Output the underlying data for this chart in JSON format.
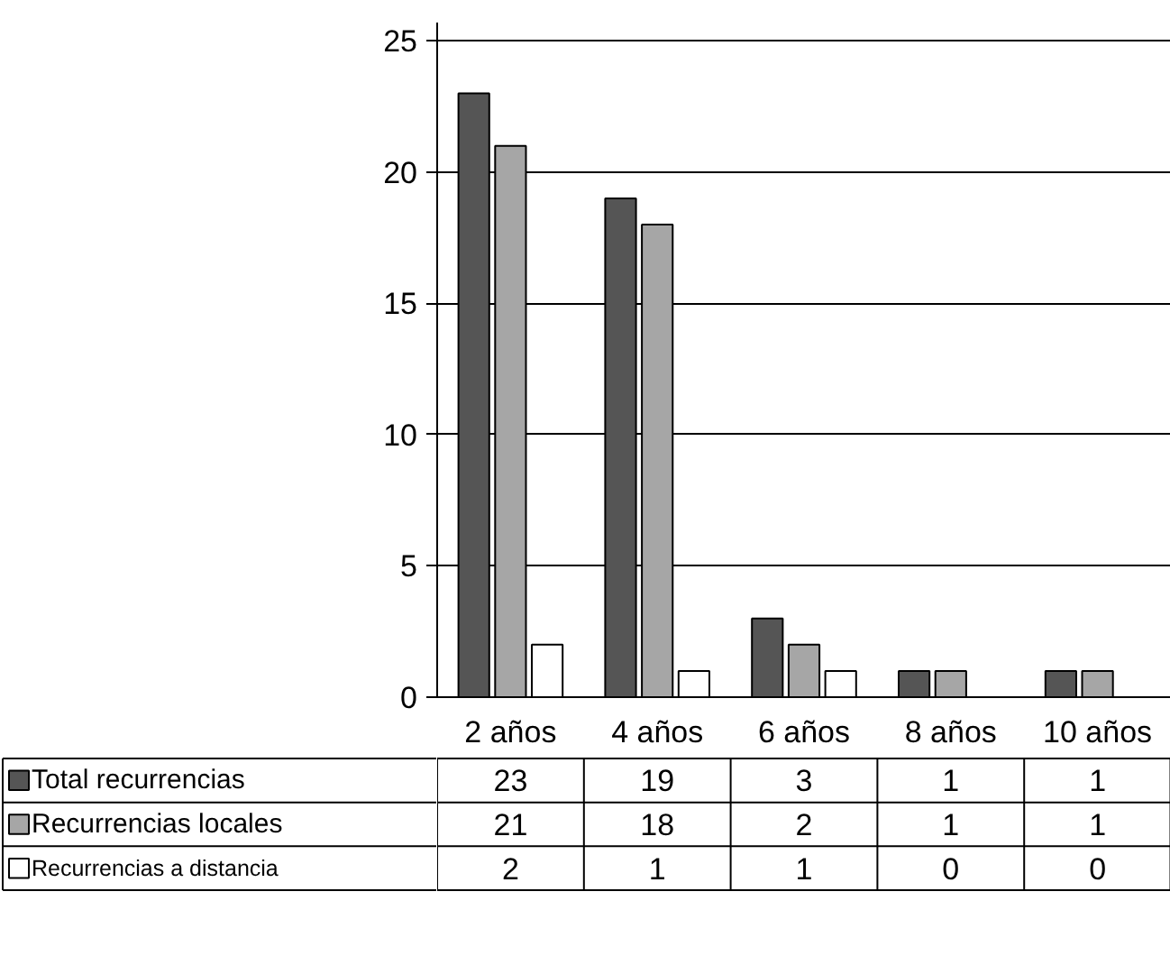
{
  "chart_data": {
    "type": "bar",
    "categories": [
      "2 años",
      "4 años",
      "6 años",
      "8 años",
      "10 años"
    ],
    "series": [
      {
        "name": "Total recurrencias",
        "color": "#555555",
        "values": [
          23,
          19,
          3,
          1,
          1
        ]
      },
      {
        "name": "Recurrencias locales",
        "color": "#a6a6a6",
        "values": [
          21,
          18,
          2,
          1,
          1
        ]
      },
      {
        "name": "Recurrencias a distancia",
        "color": "#ffffff",
        "values": [
          2,
          1,
          1,
          0,
          0
        ]
      }
    ],
    "ylim": [
      0,
      25.7
    ],
    "yticks": [
      0,
      5,
      10,
      15,
      20,
      25
    ],
    "grid": "y",
    "legend": "bottom left",
    "data_labels": true
  }
}
